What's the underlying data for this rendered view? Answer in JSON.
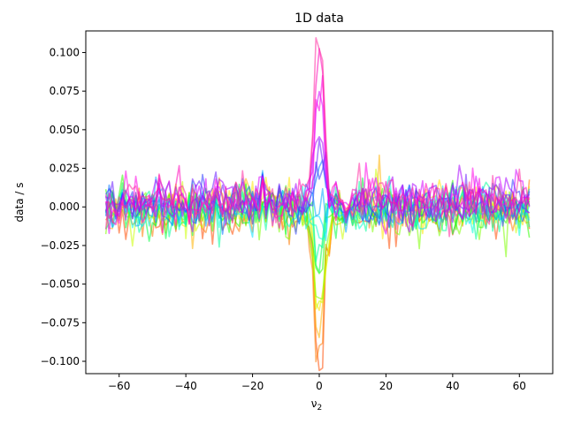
{
  "chart_data": {
    "type": "line",
    "title": "1D data",
    "xlabel_main": "ν",
    "xlabel_sub": "2",
    "ylabel": "data / s",
    "xlim": [
      -70,
      70
    ],
    "ylim": [
      -0.108,
      0.114
    ],
    "xticks": [
      -60,
      -40,
      -20,
      0,
      20,
      40,
      60
    ],
    "xtick_labels": [
      "−60",
      "−40",
      "−20",
      "0",
      "20",
      "40",
      "60"
    ],
    "yticks": [
      -0.1,
      -0.075,
      -0.05,
      -0.025,
      0.0,
      0.025,
      0.05,
      0.075,
      0.1
    ],
    "ytick_labels": [
      "−0.100",
      "−0.075",
      "−0.050",
      "−0.025",
      "0.000",
      "0.025",
      "0.050",
      "0.075",
      "0.100"
    ],
    "x_range": [
      -64,
      63
    ],
    "grid": false,
    "legend": false,
    "series": [
      {
        "color": "#ff4b00",
        "peak": -0.099,
        "noise": 0.008,
        "baseline": -0.004
      },
      {
        "color": "#ff7a00",
        "peak": -0.092,
        "noise": 0.008,
        "baseline": -0.003
      },
      {
        "color": "#ffb300",
        "peak": -0.08,
        "noise": 0.008,
        "baseline": -0.002
      },
      {
        "color": "#ffe600",
        "peak": -0.068,
        "noise": 0.008,
        "baseline": 0.0
      },
      {
        "color": "#ccff00",
        "peak": -0.058,
        "noise": 0.008,
        "baseline": -0.003
      },
      {
        "color": "#7dff00",
        "peak": -0.052,
        "noise": 0.008,
        "baseline": -0.004
      },
      {
        "color": "#2bff00",
        "peak": -0.045,
        "noise": 0.008,
        "baseline": -0.002
      },
      {
        "color": "#00ff3c",
        "peak": -0.035,
        "noise": 0.008,
        "baseline": -0.003
      },
      {
        "color": "#00ff99",
        "peak": -0.025,
        "noise": 0.007,
        "baseline": -0.003
      },
      {
        "color": "#00ffd5",
        "peak": -0.015,
        "noise": 0.007,
        "baseline": -0.002
      },
      {
        "color": "#00e0ff",
        "peak": -0.005,
        "noise": 0.007,
        "baseline": -0.002
      },
      {
        "color": "#00a8ff",
        "peak": 0.006,
        "noise": 0.007,
        "baseline": 0.0
      },
      {
        "color": "#0070ff",
        "peak": 0.015,
        "noise": 0.008,
        "baseline": 0.001
      },
      {
        "color": "#2b3bff",
        "peak": 0.024,
        "noise": 0.008,
        "baseline": 0.002
      },
      {
        "color": "#6a1bff",
        "peak": 0.035,
        "noise": 0.008,
        "baseline": 0.003
      },
      {
        "color": "#a800ff",
        "peak": 0.045,
        "noise": 0.008,
        "baseline": 0.003
      },
      {
        "color": "#d500ff",
        "peak": 0.055,
        "noise": 0.008,
        "baseline": 0.004
      },
      {
        "color": "#ff00e6",
        "peak": 0.07,
        "noise": 0.008,
        "baseline": 0.004
      },
      {
        "color": "#ff00b8",
        "peak": 0.09,
        "noise": 0.008,
        "baseline": 0.004
      },
      {
        "color": "#ff2aa0",
        "peak": 0.104,
        "noise": 0.008,
        "baseline": 0.004
      }
    ]
  }
}
